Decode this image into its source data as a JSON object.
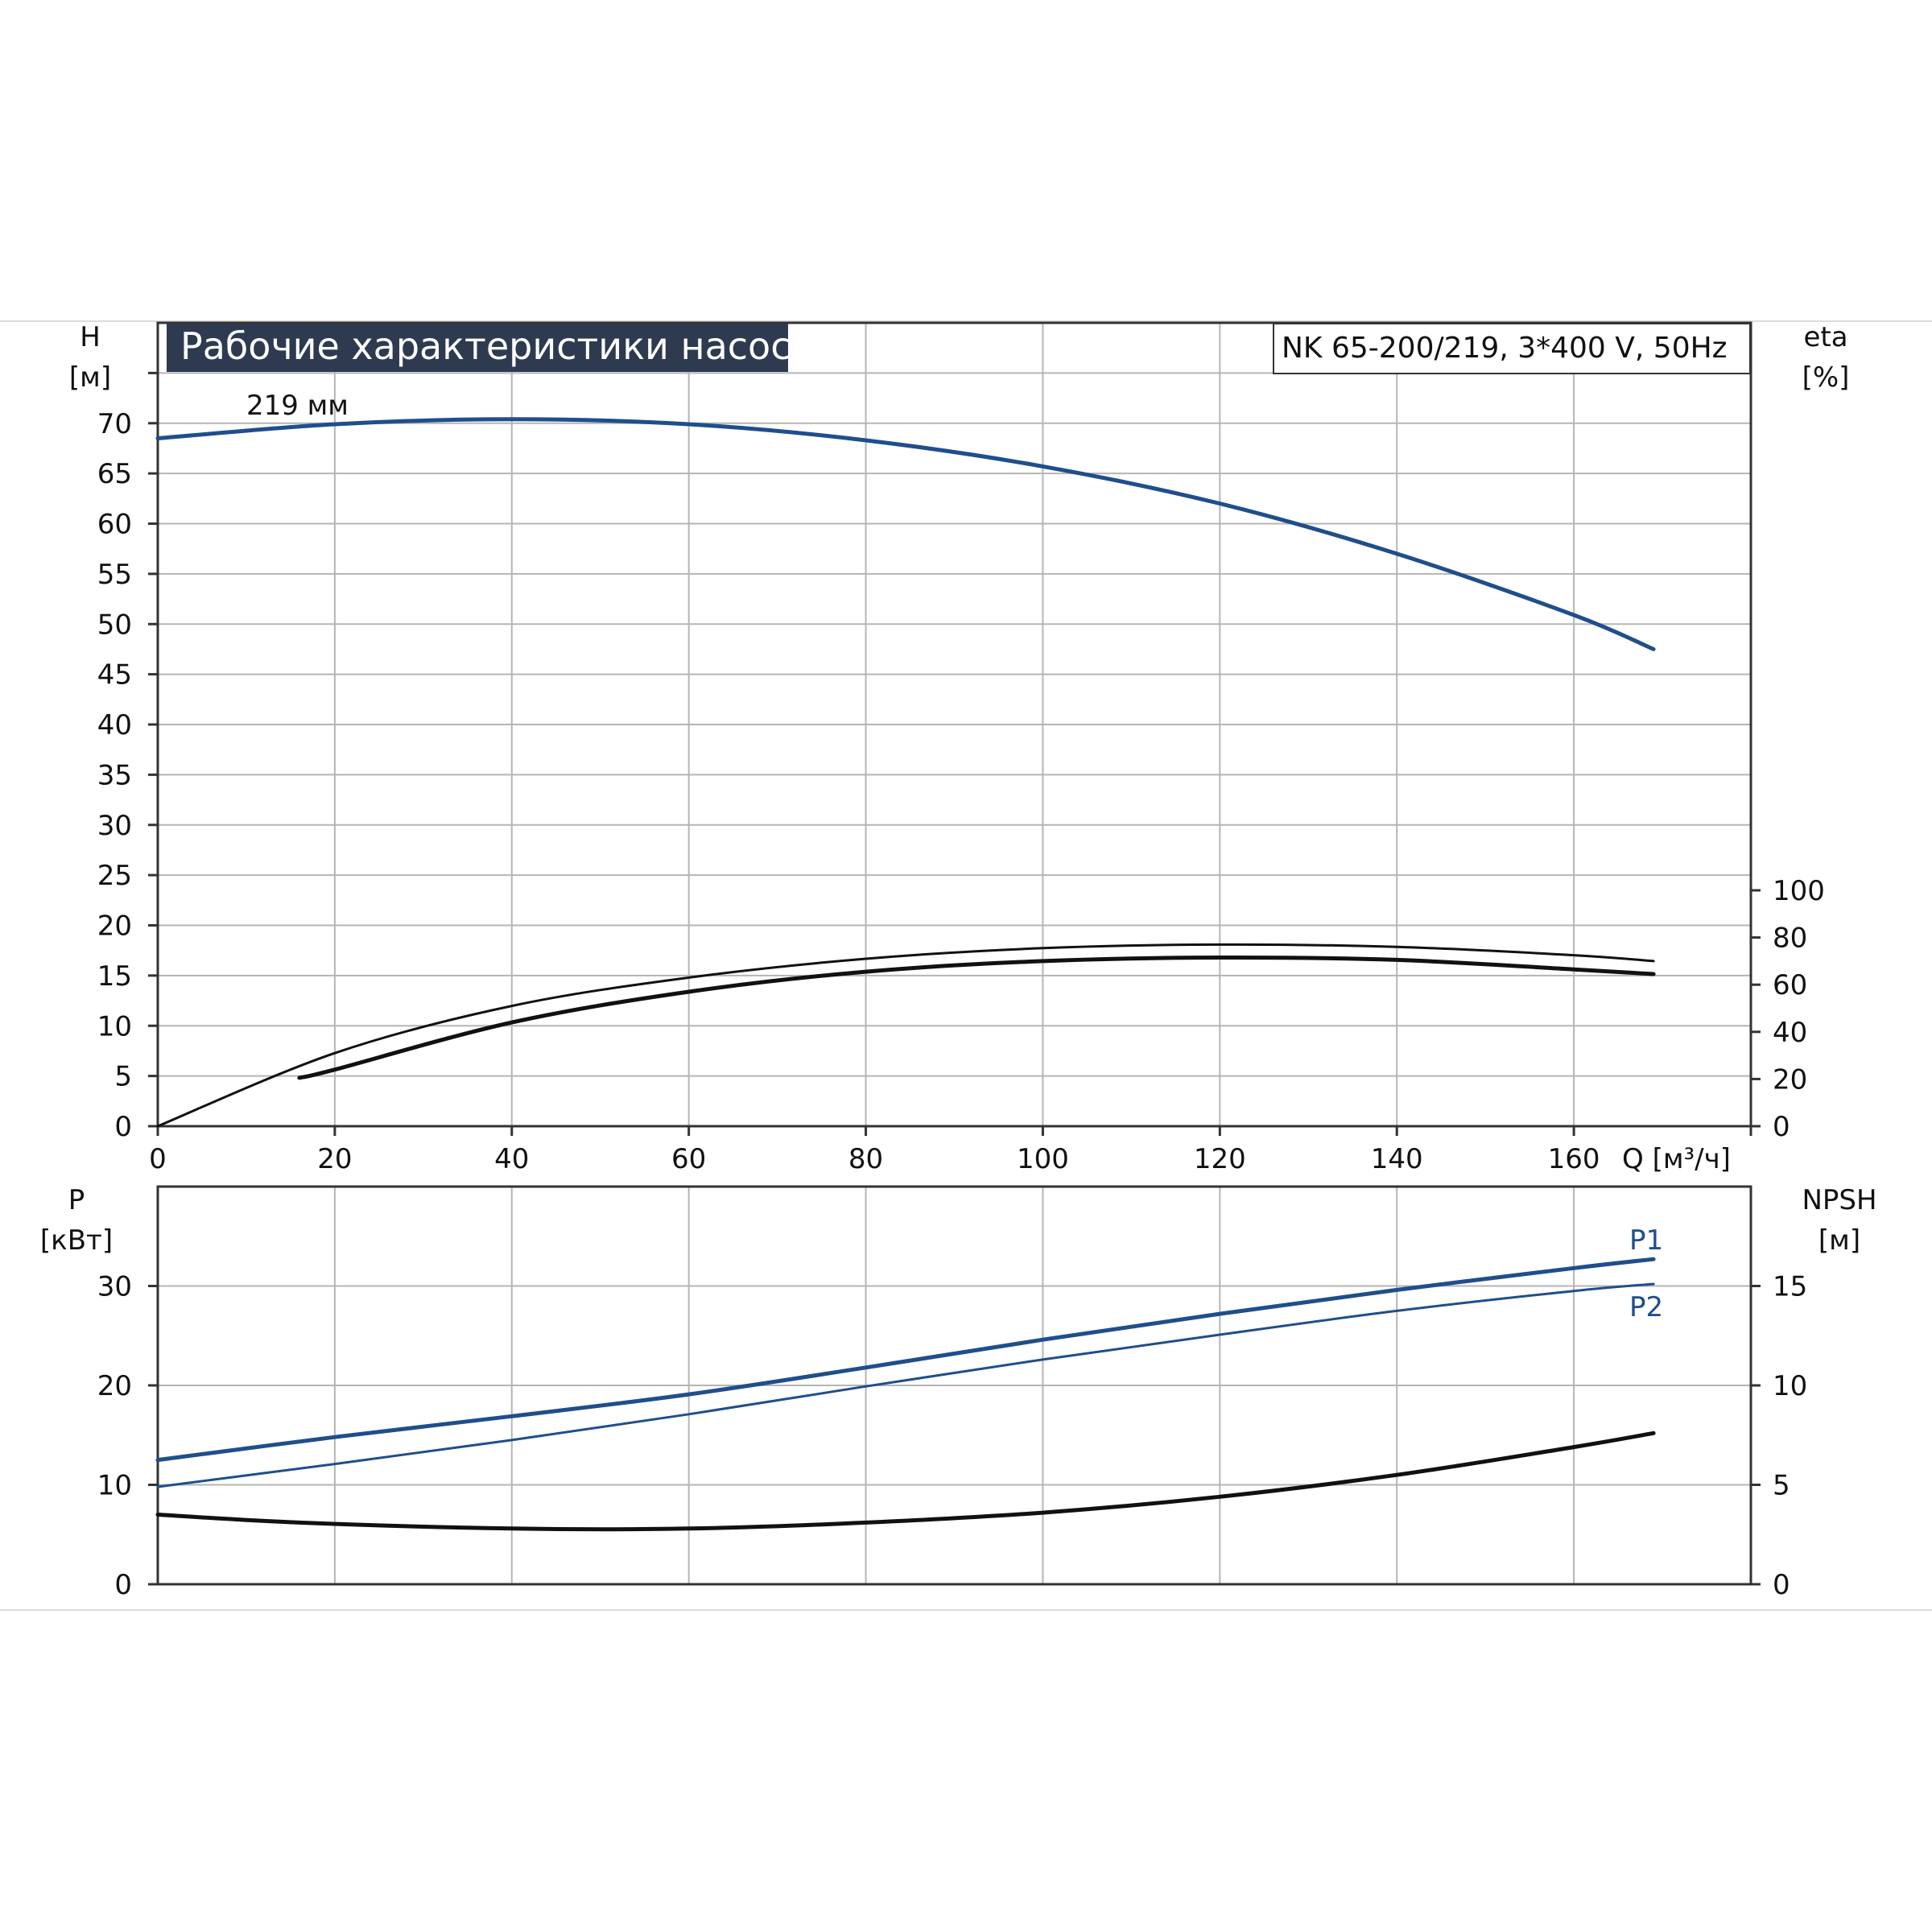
{
  "header": {
    "title": "Рабочие характеристики насоса",
    "model": "NK 65-200/219, 3*400 V, 50Hz"
  },
  "colors": {
    "blue": "#1f4e8c",
    "black": "#111111",
    "grid": "#b5b5b5",
    "title_bg": "#2e3a4f"
  },
  "chart_data": [
    {
      "id": "head_efficiency",
      "type": "line",
      "xlabel": "Q [м³/ч]",
      "ylabel": "H\n[м]",
      "y2label": "eta\n[%]",
      "xlim": [
        0,
        180
      ],
      "ylim": [
        0,
        80
      ],
      "y2lim": [
        0,
        100
      ],
      "xticks": [
        0,
        20,
        40,
        60,
        80,
        100,
        120,
        140,
        160
      ],
      "yticks": [
        0,
        5,
        10,
        15,
        20,
        25,
        30,
        35,
        40,
        45,
        50,
        55,
        60,
        65,
        70
      ],
      "y2ticks": [
        0,
        20,
        40,
        60,
        80,
        100
      ],
      "grid": true,
      "annotations": [
        {
          "text": "219 мм",
          "x": 10,
          "y": 70.7
        }
      ],
      "series": [
        {
          "key": "H",
          "axis": "left",
          "color": "blue",
          "x": [
            0,
            20,
            40,
            60,
            80,
            100,
            120,
            140,
            160,
            169
          ],
          "y": [
            68.5,
            69.9,
            70.4,
            69.9,
            68.3,
            65.7,
            62.0,
            57.0,
            50.9,
            47.5
          ]
        },
        {
          "key": "eta_upper",
          "axis": "right",
          "color": "black",
          "x": [
            0,
            20,
            40,
            60,
            80,
            100,
            120,
            140,
            160,
            169
          ],
          "y": [
            0,
            31,
            51,
            63,
            71,
            75.5,
            77,
            76,
            72.5,
            70
          ]
        },
        {
          "key": "eta_lower",
          "axis": "right",
          "color": "black",
          "x": [
            16,
            20,
            40,
            60,
            80,
            100,
            120,
            140,
            160,
            169
          ],
          "y": [
            20.5,
            24,
            44,
            57,
            65.5,
            70,
            71.5,
            70.5,
            66.5,
            64.5
          ]
        }
      ]
    },
    {
      "id": "power_npsh",
      "type": "line",
      "ylabel": "P\n[кВт]",
      "y2label": "NPSH\n[м]",
      "xlim": [
        0,
        180
      ],
      "ylim": [
        0,
        40
      ],
      "y2lim": [
        0,
        20
      ],
      "yticks": [
        0,
        10,
        20,
        30
      ],
      "y2ticks": [
        0,
        5,
        10,
        15
      ],
      "grid": true,
      "series": [
        {
          "name": "P1",
          "axis": "left",
          "color": "blue",
          "x": [
            0,
            20,
            40,
            60,
            80,
            100,
            120,
            140,
            160,
            169
          ],
          "y": [
            12.5,
            14.8,
            16.9,
            19.1,
            21.8,
            24.6,
            27.2,
            29.6,
            31.8,
            32.7
          ]
        },
        {
          "name": "P2",
          "axis": "left",
          "color": "blue",
          "x": [
            0,
            20,
            40,
            60,
            80,
            100,
            120,
            140,
            160,
            169
          ],
          "y": [
            9.8,
            12.1,
            14.5,
            17.1,
            19.9,
            22.6,
            25.1,
            27.5,
            29.5,
            30.2
          ]
        },
        {
          "key": "NPSH",
          "axis": "right",
          "color": "black",
          "x": [
            0,
            16,
            40,
            60,
            80,
            100,
            120,
            140,
            160,
            169
          ],
          "y": [
            3.5,
            3.1,
            2.8,
            2.8,
            3.1,
            3.6,
            4.4,
            5.5,
            6.9,
            7.6
          ]
        }
      ]
    }
  ]
}
